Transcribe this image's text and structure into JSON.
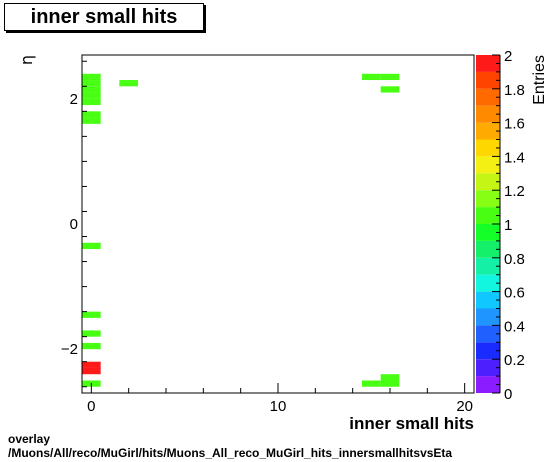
{
  "title": "inner small hits",
  "footer_line1": "overlay",
  "footer_line2": "/Muons/All/reco/MuGirl/hits/Muons_All_reco_MuGirl_hits_innersmallhitsvsEta",
  "chart_data": {
    "type": "heatmap",
    "title": "inner small hits",
    "xlabel": "inner small hits",
    "ylabel": "η",
    "zlabel": "Entries",
    "xlim": [
      -0.5,
      20.5
    ],
    "ylim": [
      -2.7,
      2.7
    ],
    "zlim": [
      0,
      2
    ],
    "xticks": [
      0,
      10,
      20
    ],
    "yticks": [
      -2,
      0,
      2
    ],
    "zticks": [
      0,
      0.2,
      0.4,
      0.6,
      0.8,
      1,
      1.2,
      1.4,
      1.6,
      1.8,
      2
    ],
    "bin_width_x": 1,
    "bin_height_y": 0.1,
    "cells": [
      {
        "x": 0,
        "y": 2.35,
        "z": 1
      },
      {
        "x": 0,
        "y": 2.25,
        "z": 1
      },
      {
        "x": 0,
        "y": 2.15,
        "z": 1
      },
      {
        "x": 0,
        "y": 2.05,
        "z": 1
      },
      {
        "x": 0,
        "y": 1.95,
        "z": 1
      },
      {
        "x": 2,
        "y": 2.25,
        "z": 1
      },
      {
        "x": 0,
        "y": 1.75,
        "z": 1
      },
      {
        "x": 0,
        "y": 1.65,
        "z": 1
      },
      {
        "x": 0,
        "y": -0.35,
        "z": 1
      },
      {
        "x": 0,
        "y": -1.45,
        "z": 1
      },
      {
        "x": 0,
        "y": -1.75,
        "z": 1
      },
      {
        "x": 0,
        "y": -1.95,
        "z": 1
      },
      {
        "x": 0,
        "y": -2.25,
        "z": 2
      },
      {
        "x": 0,
        "y": -2.35,
        "z": 2
      },
      {
        "x": 0,
        "y": -2.55,
        "z": 1
      },
      {
        "x": 15,
        "y": 2.35,
        "z": 1
      },
      {
        "x": 16,
        "y": 2.35,
        "z": 1
      },
      {
        "x": 16,
        "y": 2.15,
        "z": 1
      },
      {
        "x": 16,
        "y": -2.45,
        "z": 1
      },
      {
        "x": 15,
        "y": -2.55,
        "z": 1
      },
      {
        "x": 16,
        "y": -2.55,
        "z": 1
      }
    ],
    "palette": [
      "#8a1cff",
      "#4d1fff",
      "#1a2bff",
      "#1f60ff",
      "#1f95ff",
      "#10c8ff",
      "#12f5df",
      "#14f0a5",
      "#14f06a",
      "#14ff28",
      "#48ff14",
      "#86ff14",
      "#c4f514",
      "#f5f014",
      "#ffd700",
      "#ffaa00",
      "#ff8a00",
      "#ff6a00",
      "#ff4400",
      "#ff1a1a"
    ],
    "colors": {
      "cell_one": "#14ff28",
      "cell_two": "#ff1a1a"
    }
  }
}
